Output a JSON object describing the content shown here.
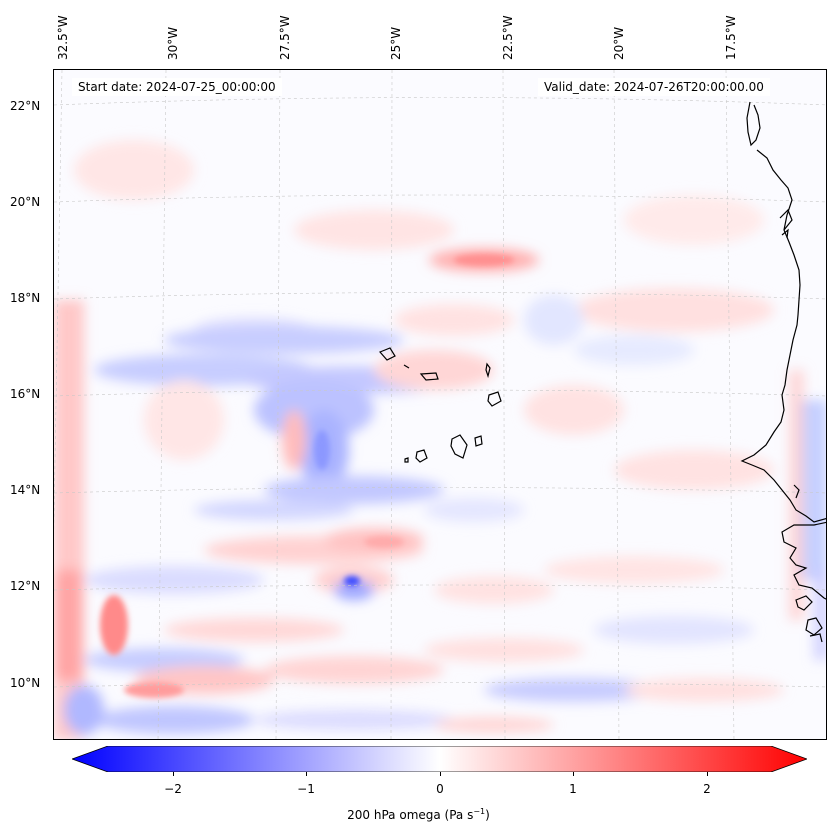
{
  "map": {
    "start_date": "Start date: 2024-07-25_00:00:00",
    "valid_date": "Valid_date: 2024-07-26T20:00:00.00",
    "longitude_labels": [
      "32.5°W",
      "30°W",
      "27.5°W",
      "25°W",
      "22.5°W",
      "20°W",
      "17.5°W"
    ],
    "latitude_labels": [
      "22°N",
      "20°N",
      "18°N",
      "16°N",
      "14°N",
      "12°N",
      "10°N"
    ]
  },
  "colorbar": {
    "label": "200 hPa omega (Pa s",
    "label_sup": "−1",
    "label_close": ")",
    "ticks": [
      "−2",
      "−1",
      "0",
      "1",
      "2"
    ],
    "range": [
      -2.75,
      2.75
    ],
    "colors": {
      "negative": "#0000ff",
      "zero": "#ffffff",
      "positive": "#ff0000"
    }
  }
}
